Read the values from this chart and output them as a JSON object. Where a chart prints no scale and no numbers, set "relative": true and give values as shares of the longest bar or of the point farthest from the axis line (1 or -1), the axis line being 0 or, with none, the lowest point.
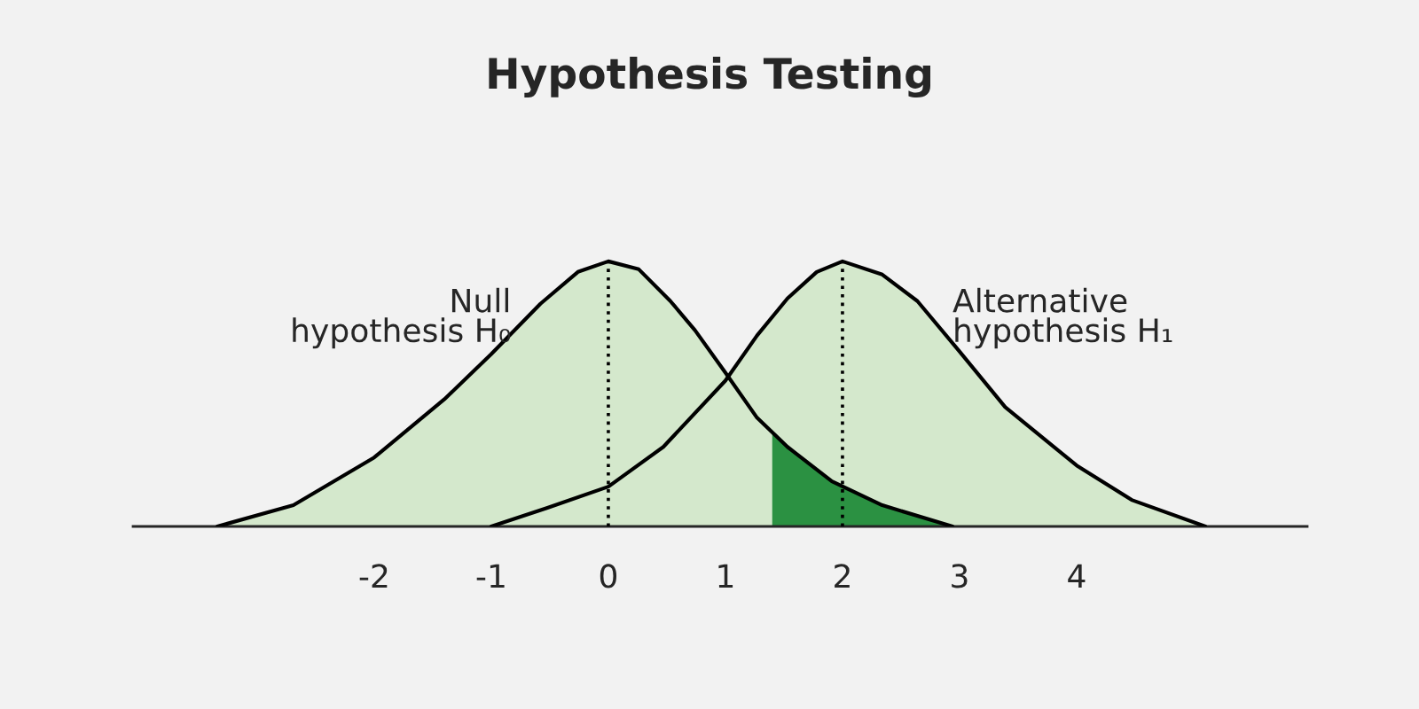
{
  "chart_data": {
    "type": "area",
    "title": "Hypothesis Testing",
    "relative": true,
    "legend": false,
    "grid": false,
    "tick_labels": "x",
    "xlim": [
      -4.06,
      5.97
    ],
    "xticks": [
      -2,
      -1,
      0,
      1,
      2,
      3,
      4
    ],
    "series": [
      {
        "name": "Null\nhypothesis H₀",
        "color": "#d4e8cc",
        "x": [
          -3.34,
          -2.69,
          -2,
          -1.4,
          -1,
          -0.58,
          -0.26,
          0,
          0.26,
          0.53,
          0.74,
          1,
          1.27,
          1.53,
          1.91,
          2.34,
          2.94
        ],
        "values": [
          0,
          0.08,
          0.26,
          0.48,
          0.65,
          0.84,
          0.96,
          1,
          0.97,
          0.85,
          0.74,
          0.58,
          0.41,
          0.3,
          0.17,
          0.08,
          0
        ]
      },
      {
        "name": "Alternative\nhypothesis H₁",
        "color": "#d4e8cc",
        "x": [
          -1,
          -0.52,
          0,
          0.47,
          1,
          1.27,
          1.53,
          1.78,
          2,
          2.34,
          2.64,
          3,
          3.39,
          4,
          4.47,
          5.1
        ],
        "values": [
          0,
          0.07,
          0.15,
          0.3,
          0.55,
          0.72,
          0.86,
          0.96,
          1,
          0.95,
          0.85,
          0.66,
          0.45,
          0.23,
          0.1,
          0
        ]
      },
      {
        "color": "#2b9142",
        "x": [
          1.4,
          1.53,
          1.91,
          2.34,
          2.94
        ],
        "values": [
          0.35,
          0.3,
          0.17,
          0.08,
          0
        ]
      }
    ],
    "ref_lines": [
      {
        "axis": "x",
        "value": 0,
        "color": "#000000",
        "line_style": "dotted"
      },
      {
        "axis": "x",
        "value": 2,
        "color": "#000000",
        "line_style": "dotted"
      }
    ]
  }
}
